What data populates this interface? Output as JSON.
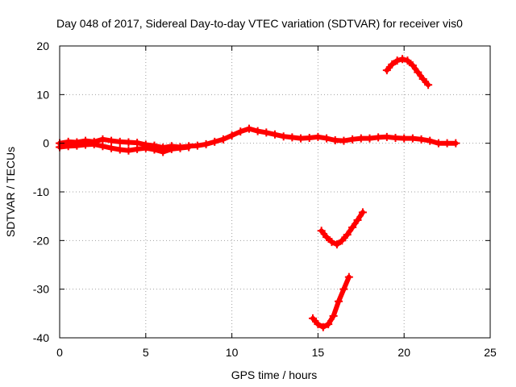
{
  "chart_data": {
    "type": "scatter",
    "title": "Day 048 of 2017, Sidereal Day-to-day VTEC variation (SDTVAR) for receiver vis0",
    "xlabel": "GPS time / hours",
    "ylabel": "SDTVAR / TECUs",
    "xlim": [
      0,
      25
    ],
    "ylim": [
      -40,
      20
    ],
    "x_ticks": [
      0,
      5,
      10,
      15,
      20,
      25
    ],
    "x_tick_labels": [
      "0",
      "5",
      "10",
      "15",
      "20",
      "25"
    ],
    "y_ticks": [
      -40,
      -30,
      -20,
      -10,
      0,
      10,
      20
    ],
    "y_tick_labels": [
      "-40",
      "-30",
      "-20",
      "-10",
      "0",
      "10",
      "20"
    ],
    "grid": true,
    "color": "#ff0000",
    "series": [
      {
        "name": "main-band",
        "x": [
          0,
          0.5,
          1,
          1.5,
          2,
          2.5,
          3,
          3.5,
          4,
          4.5,
          5,
          5.5,
          6,
          6.5,
          7,
          7.5,
          8,
          8.5,
          9,
          9.5,
          10,
          10.5,
          11,
          11.5,
          12,
          12.5,
          13,
          13.5,
          14,
          14.5,
          15,
          15.5,
          16,
          16.5,
          17,
          17.5,
          18,
          18.5,
          19,
          19.5,
          20,
          20.5,
          21,
          21.5,
          22,
          22.5,
          23
        ],
        "y": [
          0,
          0.3,
          0.2,
          0.5,
          0.3,
          0.8,
          0.5,
          0.3,
          0.2,
          0.1,
          -0.3,
          -0.5,
          -0.9,
          -0.6,
          -0.8,
          -0.6,
          -0.5,
          -0.2,
          0.3,
          0.8,
          1.6,
          2.4,
          3.0,
          2.5,
          2.2,
          1.8,
          1.4,
          1.2,
          1.0,
          1.1,
          1.3,
          1.0,
          0.6,
          0.5,
          0.8,
          1.0,
          1.0,
          1.2,
          1.3,
          1.1,
          1.0,
          1.0,
          0.8,
          0.5,
          0.0,
          0.0,
          0.0
        ]
      },
      {
        "name": "lower-band",
        "x": [
          0,
          0.5,
          1,
          1.5,
          2,
          2.5,
          3,
          3.5,
          4,
          4.5,
          5,
          5.5,
          6,
          6.5,
          7,
          7.5
        ],
        "y": [
          -0.8,
          -0.6,
          -0.5,
          -0.3,
          -0.2,
          -0.6,
          -1.0,
          -1.3,
          -1.5,
          -1.2,
          -1.0,
          -1.3,
          -1.8,
          -1.2,
          -1.0,
          -0.8
        ]
      },
      {
        "name": "upper-right-arc",
        "x": [
          19.0,
          19.3,
          19.6,
          19.9,
          20.2,
          20.5,
          20.8,
          21.1,
          21.4
        ],
        "y": [
          15.0,
          16.2,
          17.0,
          17.3,
          17.0,
          16.0,
          14.6,
          13.2,
          12.0
        ]
      },
      {
        "name": "mid-lower-arc",
        "x": [
          15.2,
          15.5,
          15.8,
          16.1,
          16.4,
          16.7,
          17.0,
          17.3,
          17.6
        ],
        "y": [
          -18.0,
          -19.3,
          -20.3,
          -20.8,
          -20.0,
          -18.8,
          -17.3,
          -15.8,
          -14.2
        ]
      },
      {
        "name": "bottom-arc",
        "x": [
          14.7,
          15.0,
          15.3,
          15.6,
          15.9,
          16.2,
          16.5,
          16.8
        ],
        "y": [
          -36.0,
          -37.2,
          -37.8,
          -37.2,
          -35.5,
          -32.5,
          -30.0,
          -27.5
        ]
      }
    ]
  }
}
